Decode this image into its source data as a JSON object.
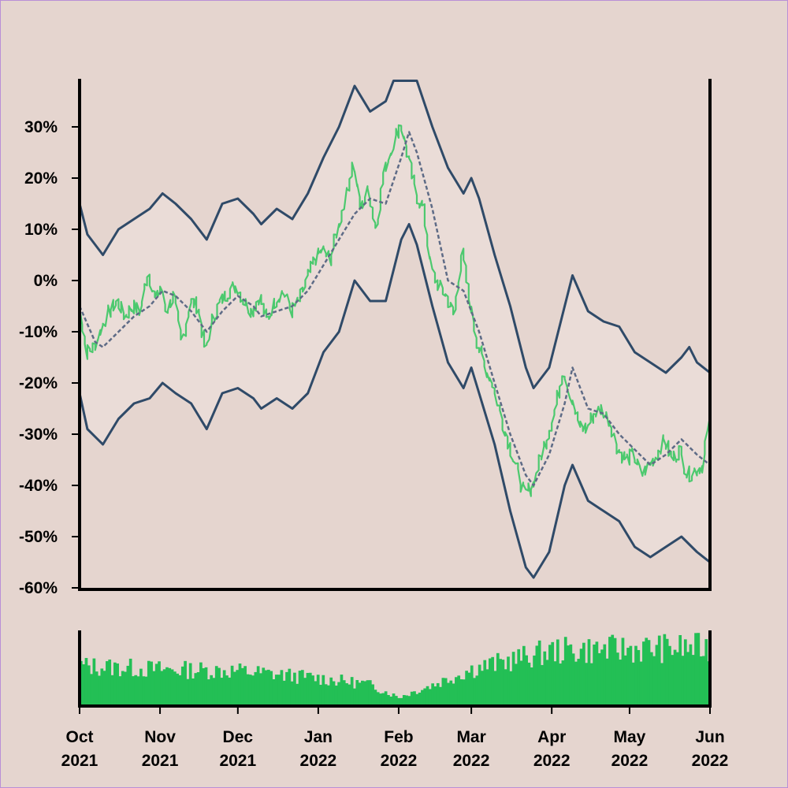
{
  "chart_data": [
    {
      "type": "line",
      "title": "",
      "xlabel": "",
      "ylabel": "",
      "x_range": [
        "2021-10-01",
        "2022-06-01"
      ],
      "ylim": [
        -60,
        40
      ],
      "yticks": [
        30,
        20,
        10,
        0,
        -10,
        -20,
        -30,
        -40,
        -50,
        -60
      ],
      "ytick_labels": [
        "30%",
        "20%",
        "10%",
        "0%",
        "-10%",
        "-20%",
        "-30%",
        "-40%",
        "-50%",
        "-60%"
      ],
      "grid": false,
      "colors": {
        "price": "#4cc96e",
        "moving_average": "#5e6b86",
        "band": "#2f4a68",
        "band_fill": "#eadcd7",
        "axes": "#000000"
      },
      "series": [
        {
          "role": "price",
          "style": "solid",
          "points": [
            [
              "2021-10-01",
              -4
            ],
            [
              "2021-10-04",
              -14
            ],
            [
              "2021-10-07",
              -13
            ],
            [
              "2021-10-10",
              -9
            ],
            [
              "2021-10-13",
              -6
            ],
            [
              "2021-10-16",
              -4
            ],
            [
              "2021-10-19",
              -7
            ],
            [
              "2021-10-22",
              -5
            ],
            [
              "2021-10-25",
              -6
            ],
            [
              "2021-10-28",
              2
            ],
            [
              "2021-10-31",
              -4
            ],
            [
              "2021-11-02",
              -1
            ],
            [
              "2021-11-04",
              -6
            ],
            [
              "2021-11-07",
              -3
            ],
            [
              "2021-11-10",
              -12
            ],
            [
              "2021-11-13",
              -4
            ],
            [
              "2021-11-16",
              -5
            ],
            [
              "2021-11-19",
              -14
            ],
            [
              "2021-11-22",
              -7
            ],
            [
              "2021-11-25",
              -4
            ],
            [
              "2021-11-28",
              -2
            ],
            [
              "2021-12-01",
              -1
            ],
            [
              "2021-12-04",
              -4
            ],
            [
              "2021-12-07",
              -6
            ],
            [
              "2021-12-10",
              -3
            ],
            [
              "2021-12-13",
              -8
            ],
            [
              "2021-12-16",
              -4
            ],
            [
              "2021-12-19",
              -2
            ],
            [
              "2021-12-22",
              -6
            ],
            [
              "2021-12-25",
              -4
            ],
            [
              "2021-12-28",
              0
            ],
            [
              "2021-12-31",
              4
            ],
            [
              "2022-01-03",
              6
            ],
            [
              "2022-01-06",
              4
            ],
            [
              "2022-01-09",
              10
            ],
            [
              "2022-01-12",
              16
            ],
            [
              "2022-01-15",
              23
            ],
            [
              "2022-01-18",
              14
            ],
            [
              "2022-01-21",
              18
            ],
            [
              "2022-01-24",
              10
            ],
            [
              "2022-01-27",
              21
            ],
            [
              "2022-01-30",
              26
            ],
            [
              "2022-02-02",
              31
            ],
            [
              "2022-02-05",
              24
            ],
            [
              "2022-02-08",
              17
            ],
            [
              "2022-02-11",
              14
            ],
            [
              "2022-02-14",
              2
            ],
            [
              "2022-02-17",
              -1
            ],
            [
              "2022-02-20",
              -3
            ],
            [
              "2022-02-23",
              -7
            ],
            [
              "2022-02-26",
              6
            ],
            [
              "2022-03-01",
              -4
            ],
            [
              "2022-03-04",
              -12
            ],
            [
              "2022-03-07",
              -17
            ],
            [
              "2022-03-10",
              -20
            ],
            [
              "2022-03-13",
              -27
            ],
            [
              "2022-03-16",
              -32
            ],
            [
              "2022-03-19",
              -37
            ],
            [
              "2022-03-22",
              -42
            ],
            [
              "2022-03-25",
              -40
            ],
            [
              "2022-03-28",
              -35
            ],
            [
              "2022-03-31",
              -30
            ],
            [
              "2022-04-03",
              -25
            ],
            [
              "2022-04-06",
              -17
            ],
            [
              "2022-04-09",
              -23
            ],
            [
              "2022-04-12",
              -28
            ],
            [
              "2022-04-15",
              -29
            ],
            [
              "2022-04-18",
              -26
            ],
            [
              "2022-04-21",
              -25
            ],
            [
              "2022-04-24",
              -28
            ],
            [
              "2022-04-27",
              -33
            ],
            [
              "2022-04-30",
              -35
            ],
            [
              "2022-05-03",
              -34
            ],
            [
              "2022-05-06",
              -38
            ],
            [
              "2022-05-09",
              -36
            ],
            [
              "2022-05-12",
              -34
            ],
            [
              "2022-05-15",
              -31
            ],
            [
              "2022-05-18",
              -35
            ],
            [
              "2022-05-21",
              -33
            ],
            [
              "2022-05-24",
              -38
            ],
            [
              "2022-05-27",
              -37
            ],
            [
              "2022-05-30",
              -36
            ],
            [
              "2022-06-01",
              -28
            ]
          ]
        },
        {
          "role": "moving_average",
          "style": "dashed",
          "points": [
            [
              "2021-10-01",
              -5
            ],
            [
              "2021-10-07",
              -12
            ],
            [
              "2021-10-10",
              -13
            ],
            [
              "2021-10-16",
              -10
            ],
            [
              "2021-10-22",
              -7
            ],
            [
              "2021-10-28",
              -5
            ],
            [
              "2021-11-02",
              -2
            ],
            [
              "2021-11-07",
              -3
            ],
            [
              "2021-11-13",
              -6
            ],
            [
              "2021-11-19",
              -10
            ],
            [
              "2021-11-25",
              -6
            ],
            [
              "2021-12-01",
              -3
            ],
            [
              "2021-12-07",
              -5
            ],
            [
              "2021-12-10",
              -7
            ],
            [
              "2021-12-16",
              -6
            ],
            [
              "2021-12-22",
              -5
            ],
            [
              "2021-12-28",
              -2
            ],
            [
              "2022-01-03",
              3
            ],
            [
              "2022-01-09",
              8
            ],
            [
              "2022-01-15",
              13
            ],
            [
              "2022-01-21",
              16
            ],
            [
              "2022-01-27",
              15
            ],
            [
              "2022-02-02",
              24
            ],
            [
              "2022-02-05",
              29
            ],
            [
              "2022-02-08",
              25
            ],
            [
              "2022-02-14",
              14
            ],
            [
              "2022-02-20",
              0
            ],
            [
              "2022-02-26",
              -2
            ],
            [
              "2022-03-04",
              -10
            ],
            [
              "2022-03-10",
              -20
            ],
            [
              "2022-03-16",
              -30
            ],
            [
              "2022-03-22",
              -38
            ],
            [
              "2022-03-25",
              -40
            ],
            [
              "2022-03-31",
              -34
            ],
            [
              "2022-04-06",
              -24
            ],
            [
              "2022-04-09",
              -17
            ],
            [
              "2022-04-15",
              -25
            ],
            [
              "2022-04-21",
              -26
            ],
            [
              "2022-04-27",
              -30
            ],
            [
              "2022-05-03",
              -33
            ],
            [
              "2022-05-09",
              -36
            ],
            [
              "2022-05-15",
              -34
            ],
            [
              "2022-05-21",
              -31
            ],
            [
              "2022-05-27",
              -34
            ],
            [
              "2022-06-01",
              -36
            ]
          ]
        },
        {
          "role": "upper_band",
          "style": "solid",
          "points": [
            [
              "2021-10-01",
              15
            ],
            [
              "2021-10-04",
              9
            ],
            [
              "2021-10-10",
              5
            ],
            [
              "2021-10-16",
              10
            ],
            [
              "2021-10-22",
              12
            ],
            [
              "2021-10-28",
              14
            ],
            [
              "2021-11-02",
              17
            ],
            [
              "2021-11-07",
              15
            ],
            [
              "2021-11-13",
              12
            ],
            [
              "2021-11-19",
              8
            ],
            [
              "2021-11-25",
              15
            ],
            [
              "2021-12-01",
              16
            ],
            [
              "2021-12-07",
              13
            ],
            [
              "2021-12-10",
              11
            ],
            [
              "2021-12-16",
              14
            ],
            [
              "2021-12-22",
              12
            ],
            [
              "2021-12-28",
              17
            ],
            [
              "2022-01-03",
              24
            ],
            [
              "2022-01-09",
              30
            ],
            [
              "2022-01-15",
              38
            ],
            [
              "2022-01-21",
              33
            ],
            [
              "2022-01-27",
              35
            ],
            [
              "2022-01-30",
              39
            ],
            [
              "2022-02-08",
              39
            ],
            [
              "2022-02-14",
              30
            ],
            [
              "2022-02-20",
              22
            ],
            [
              "2022-02-26",
              17
            ],
            [
              "2022-03-01",
              20
            ],
            [
              "2022-03-04",
              16
            ],
            [
              "2022-03-10",
              5
            ],
            [
              "2022-03-16",
              -5
            ],
            [
              "2022-03-22",
              -17
            ],
            [
              "2022-03-25",
              -21
            ],
            [
              "2022-03-31",
              -17
            ],
            [
              "2022-04-06",
              -5
            ],
            [
              "2022-04-09",
              1
            ],
            [
              "2022-04-15",
              -6
            ],
            [
              "2022-04-21",
              -8
            ],
            [
              "2022-04-27",
              -9
            ],
            [
              "2022-05-03",
              -14
            ],
            [
              "2022-05-09",
              -16
            ],
            [
              "2022-05-15",
              -18
            ],
            [
              "2022-05-21",
              -15
            ],
            [
              "2022-05-24",
              -13
            ],
            [
              "2022-05-27",
              -16
            ],
            [
              "2022-06-01",
              -18
            ]
          ]
        },
        {
          "role": "lower_band",
          "style": "solid",
          "points": [
            [
              "2021-10-01",
              -22
            ],
            [
              "2021-10-04",
              -29
            ],
            [
              "2021-10-10",
              -32
            ],
            [
              "2021-10-16",
              -27
            ],
            [
              "2021-10-22",
              -24
            ],
            [
              "2021-10-28",
              -23
            ],
            [
              "2021-11-02",
              -20
            ],
            [
              "2021-11-07",
              -22
            ],
            [
              "2021-11-13",
              -24
            ],
            [
              "2021-11-19",
              -29
            ],
            [
              "2021-11-25",
              -22
            ],
            [
              "2021-12-01",
              -21
            ],
            [
              "2021-12-07",
              -23
            ],
            [
              "2021-12-10",
              -25
            ],
            [
              "2021-12-16",
              -23
            ],
            [
              "2021-12-22",
              -25
            ],
            [
              "2021-12-28",
              -22
            ],
            [
              "2022-01-03",
              -14
            ],
            [
              "2022-01-09",
              -10
            ],
            [
              "2022-01-15",
              0
            ],
            [
              "2022-01-21",
              -4
            ],
            [
              "2022-01-27",
              -4
            ],
            [
              "2022-02-02",
              8
            ],
            [
              "2022-02-05",
              11
            ],
            [
              "2022-02-08",
              7
            ],
            [
              "2022-02-14",
              -5
            ],
            [
              "2022-02-20",
              -16
            ],
            [
              "2022-02-26",
              -21
            ],
            [
              "2022-03-01",
              -17
            ],
            [
              "2022-03-04",
              -22
            ],
            [
              "2022-03-10",
              -32
            ],
            [
              "2022-03-16",
              -45
            ],
            [
              "2022-03-22",
              -56
            ],
            [
              "2022-03-25",
              -58
            ],
            [
              "2022-03-31",
              -53
            ],
            [
              "2022-04-06",
              -40
            ],
            [
              "2022-04-09",
              -36
            ],
            [
              "2022-04-15",
              -43
            ],
            [
              "2022-04-21",
              -45
            ],
            [
              "2022-04-27",
              -47
            ],
            [
              "2022-05-03",
              -52
            ],
            [
              "2022-05-09",
              -54
            ],
            [
              "2022-05-15",
              -52
            ],
            [
              "2022-05-21",
              -50
            ],
            [
              "2022-05-27",
              -53
            ],
            [
              "2022-06-01",
              -55
            ]
          ]
        }
      ]
    },
    {
      "type": "bar",
      "title": "",
      "xlabel": "",
      "ylabel": "",
      "x_range": [
        "2021-10-01",
        "2022-06-01"
      ],
      "ylim": [
        0,
        1
      ],
      "shared_x_axis": true,
      "color": "#23bf55",
      "values_description_hidden": false,
      "profile": [
        [
          "2021-10-01",
          0.55
        ],
        [
          "2021-11-01",
          0.5
        ],
        [
          "2021-12-01",
          0.48
        ],
        [
          "2022-01-01",
          0.38
        ],
        [
          "2022-01-20",
          0.3
        ],
        [
          "2022-02-01",
          0.12
        ],
        [
          "2022-02-15",
          0.3
        ],
        [
          "2022-03-01",
          0.5
        ],
        [
          "2022-04-01",
          0.75
        ],
        [
          "2022-05-01",
          0.78
        ],
        [
          "2022-06-01",
          0.8
        ]
      ],
      "xtick_labels": [
        [
          "Oct",
          "2021"
        ],
        [
          "Nov",
          "2021"
        ],
        [
          "Dec",
          "2021"
        ],
        [
          "Jan",
          "2022"
        ],
        [
          "Feb",
          "2022"
        ],
        [
          "Mar",
          "2022"
        ],
        [
          "Apr",
          "2022"
        ],
        [
          "May",
          "2022"
        ],
        [
          "Jun",
          "2022"
        ]
      ],
      "xtick_dates": [
        "2021-10-01",
        "2021-11-01",
        "2021-12-01",
        "2022-01-01",
        "2022-02-01",
        "2022-03-01",
        "2022-04-01",
        "2022-05-01",
        "2022-06-01"
      ]
    }
  ]
}
